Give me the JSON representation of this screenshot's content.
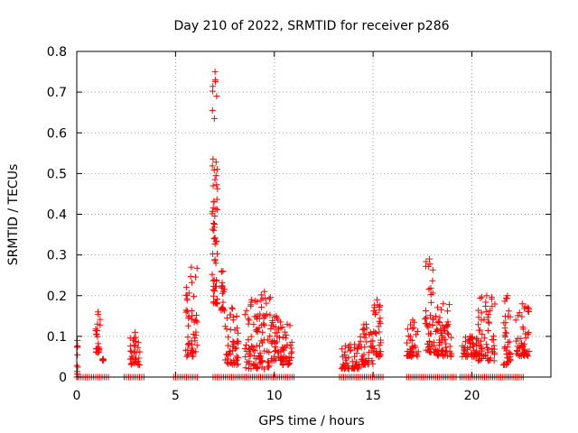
{
  "chart_data": {
    "type": "scatter",
    "title": "Day 210 of 2022, SRMTID for receiver p286",
    "xlabel": "GPS time / hours",
    "ylabel": "SRMTID / TECUs",
    "xlim": [
      0,
      24
    ],
    "ylim": [
      0,
      0.8
    ],
    "xticks": [
      0,
      5,
      10,
      15,
      20
    ],
    "xtick_labels": [
      "0",
      "5",
      "10",
      "15",
      "20"
    ],
    "yticks": [
      0,
      0.1,
      0.2,
      0.3,
      0.4,
      0.5,
      0.6,
      0.7,
      0.8
    ],
    "ytick_labels": [
      "0",
      "0.1",
      "0.2",
      "0.3",
      "0.4",
      "0.5",
      "0.6",
      "0.7",
      "0.8"
    ],
    "grid": true,
    "marker": "plus",
    "marker_color": "#ff0000",
    "clusters": [
      {
        "x": [
          0.0,
          0.05
        ],
        "y": [
          0.0,
          0.09
        ]
      },
      {
        "x": [
          0.95,
          1.2
        ],
        "y": [
          0.06,
          0.16
        ]
      },
      {
        "x": [
          1.3,
          1.35
        ],
        "y": [
          0.04,
          0.045
        ]
      },
      {
        "x": [
          2.7,
          3.2
        ],
        "y": [
          0.03,
          0.11
        ]
      },
      {
        "x": [
          5.5,
          6.1
        ],
        "y": [
          0.05,
          0.27
        ]
      },
      {
        "x": [
          6.85,
          7.15
        ],
        "y": [
          0.18,
          0.75
        ]
      },
      {
        "x": [
          7.3,
          7.5
        ],
        "y": [
          0.16,
          0.26
        ]
      },
      {
        "x": [
          7.5,
          8.2
        ],
        "y": [
          0.03,
          0.17
        ]
      },
      {
        "x": [
          8.5,
          9.2
        ],
        "y": [
          0.02,
          0.19
        ]
      },
      {
        "x": [
          9.2,
          9.8
        ],
        "y": [
          0.02,
          0.21
        ]
      },
      {
        "x": [
          9.8,
          10.4
        ],
        "y": [
          0.04,
          0.15
        ]
      },
      {
        "x": [
          10.4,
          10.9
        ],
        "y": [
          0.03,
          0.13
        ]
      },
      {
        "x": [
          13.4,
          14.3
        ],
        "y": [
          0.02,
          0.08
        ]
      },
      {
        "x": [
          14.3,
          15.0
        ],
        "y": [
          0.03,
          0.13
        ]
      },
      {
        "x": [
          15.0,
          15.4
        ],
        "y": [
          0.05,
          0.19
        ]
      },
      {
        "x": [
          16.7,
          17.3
        ],
        "y": [
          0.05,
          0.14
        ]
      },
      {
        "x": [
          17.6,
          18.1
        ],
        "y": [
          0.06,
          0.29
        ]
      },
      {
        "x": [
          18.1,
          19.0
        ],
        "y": [
          0.05,
          0.18
        ]
      },
      {
        "x": [
          19.5,
          20.3
        ],
        "y": [
          0.05,
          0.1
        ]
      },
      {
        "x": [
          20.3,
          21.2
        ],
        "y": [
          0.04,
          0.2
        ]
      },
      {
        "x": [
          21.6,
          22.0
        ],
        "y": [
          0.03,
          0.2
        ]
      },
      {
        "x": [
          22.2,
          22.9
        ],
        "y": [
          0.05,
          0.18
        ]
      }
    ],
    "zero_segments": [
      [
        0.0,
        1.6
      ],
      [
        2.4,
        3.4
      ],
      [
        4.9,
        6.1
      ],
      [
        6.9,
        9.2
      ],
      [
        9.3,
        11.0
      ],
      [
        13.3,
        15.5
      ],
      [
        16.7,
        19.2
      ],
      [
        19.4,
        22.6
      ]
    ]
  }
}
